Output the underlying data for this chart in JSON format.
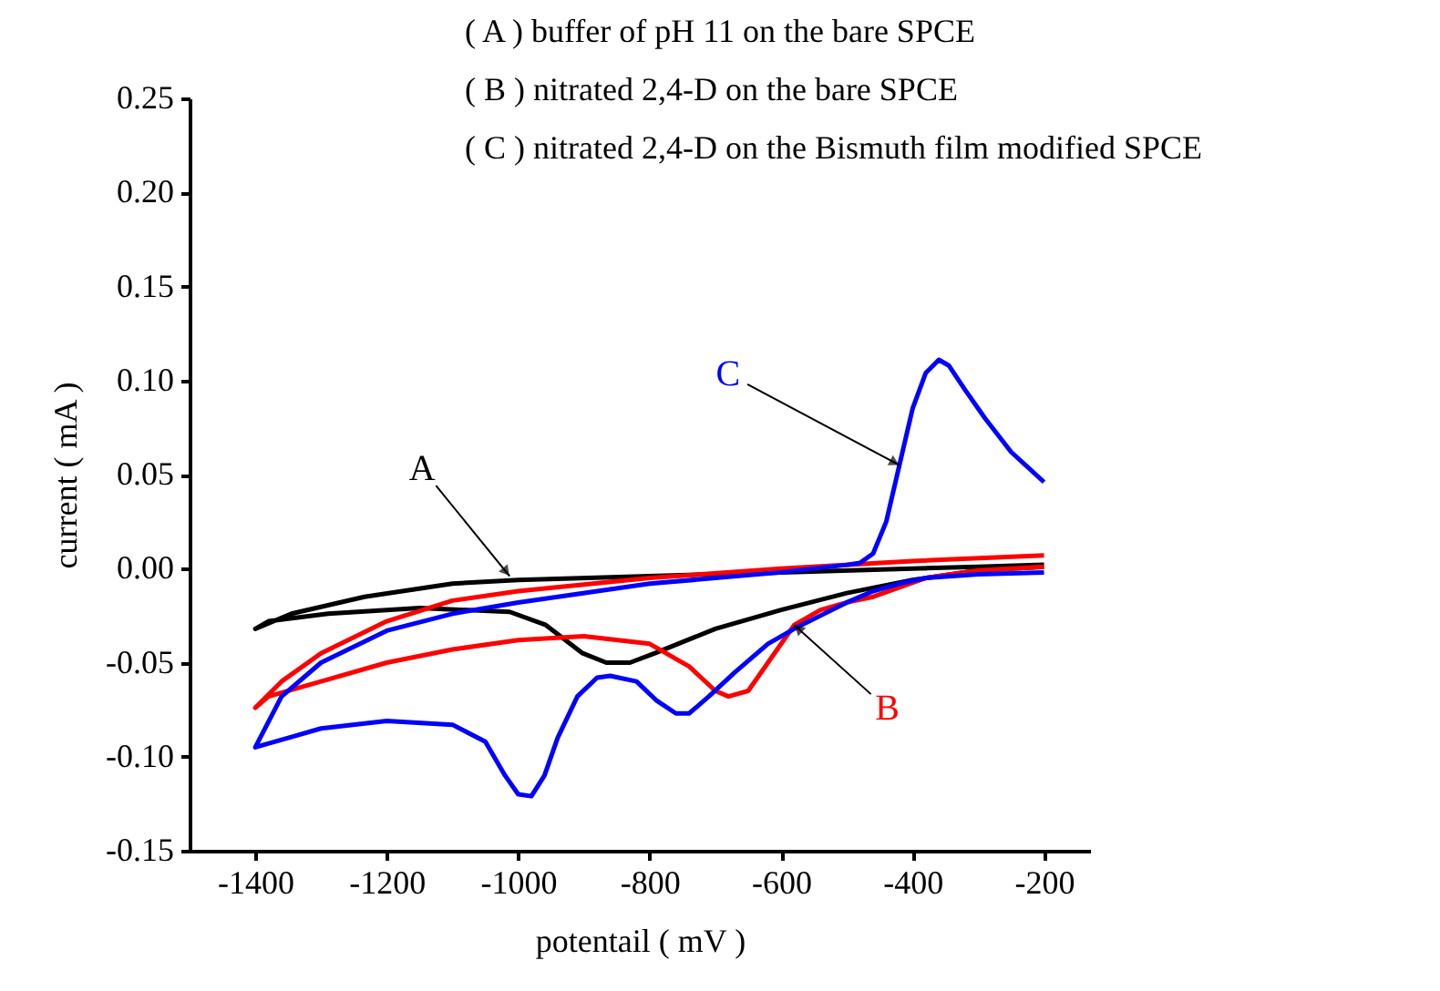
{
  "chart_data": {
    "type": "line",
    "xlabel": "potentail ( mV )",
    "ylabel": "current ( mA )",
    "xlim": [
      -1500,
      -130
    ],
    "ylim": [
      -0.15,
      0.25
    ],
    "xticks": [
      -1400,
      -1200,
      -1000,
      -800,
      -600,
      -400,
      -200
    ],
    "yticks": [
      {
        "value": -0.15,
        "label": "-0.15"
      },
      {
        "value": -0.1,
        "label": "-0.10"
      },
      {
        "value": -0.05,
        "label": "-0.05"
      },
      {
        "value": 0,
        "label": "0.00"
      },
      {
        "value": 0.05,
        "label": "0.05"
      },
      {
        "value": 0.1,
        "label": "0.10"
      },
      {
        "value": 0.15,
        "label": "0.15"
      },
      {
        "value": 0.2,
        "label": "0.20"
      },
      {
        "value": 0.25,
        "label": "0.25"
      }
    ],
    "grid": false,
    "marker": "none",
    "line_style": "solid",
    "annotations": [
      "( A ) buffer of pH  11 on the bare SPCE",
      "( B ) nitrated 2,4-D on the bare SPCE",
      "( C ) nitrated 2,4-D on the Bismuth film modified SPCE",
      {
        "text": "A",
        "x": -1013,
        "y": -0.004
      },
      {
        "text": "B",
        "x": -580,
        "y": -0.03
      },
      {
        "text": "C",
        "x": -420,
        "y": 0.055
      }
    ],
    "series": [
      {
        "color": "#000000",
        "x": [
          -200,
          -300,
          -400,
          -600,
          -800,
          -1000,
          -1100,
          -1234,
          -1345,
          -1400,
          -1380,
          -1289,
          -1150,
          -1013,
          -958,
          -902,
          -866,
          -830,
          -792,
          -700,
          -600,
          -500,
          -400,
          -300,
          -200
        ],
        "values": [
          0.002,
          0.001,
          0.0,
          -0.002,
          -0.004,
          -0.006,
          -0.008,
          -0.015,
          -0.024,
          -0.032,
          -0.028,
          -0.024,
          -0.021,
          -0.023,
          -0.03,
          -0.045,
          -0.05,
          -0.05,
          -0.045,
          -0.032,
          -0.022,
          -0.013,
          -0.006,
          -0.001,
          0.001
        ]
      },
      {
        "color": "#ff0000",
        "x": [
          -200,
          -400,
          -600,
          -800,
          -1000,
          -1100,
          -1200,
          -1300,
          -1360,
          -1400,
          -1380,
          -1300,
          -1200,
          -1100,
          -1000,
          -900,
          -800,
          -740,
          -700,
          -680,
          -650,
          -620,
          -580,
          -540,
          -500,
          -460,
          -420,
          -380,
          -300,
          -200
        ],
        "values": [
          0.007,
          0.004,
          0.0,
          -0.005,
          -0.012,
          -0.017,
          -0.028,
          -0.045,
          -0.06,
          -0.074,
          -0.068,
          -0.06,
          -0.05,
          -0.043,
          -0.038,
          -0.036,
          -0.04,
          -0.052,
          -0.065,
          -0.068,
          -0.065,
          -0.05,
          -0.03,
          -0.022,
          -0.018,
          -0.015,
          -0.01,
          -0.005,
          -0.001,
          0.001
        ]
      },
      {
        "color": "#0000ff",
        "x": [
          -200,
          -250,
          -290,
          -320,
          -345,
          -360,
          -380,
          -400,
          -420,
          -440,
          -460,
          -480,
          -500,
          -600,
          -800,
          -1000,
          -1100,
          -1200,
          -1300,
          -1360,
          -1400,
          -1350,
          -1300,
          -1200,
          -1100,
          -1050,
          -1020,
          -1000,
          -980,
          -960,
          -940,
          -910,
          -880,
          -860,
          -820,
          -790,
          -760,
          -740,
          -710,
          -670,
          -620,
          -580,
          -540,
          -500,
          -460,
          -420,
          -380,
          -300,
          -200
        ],
        "values": [
          0.046,
          0.062,
          0.08,
          0.095,
          0.108,
          0.111,
          0.104,
          0.085,
          0.055,
          0.025,
          0.008,
          0.003,
          0.002,
          -0.002,
          -0.008,
          -0.018,
          -0.024,
          -0.033,
          -0.05,
          -0.068,
          -0.095,
          -0.09,
          -0.085,
          -0.081,
          -0.083,
          -0.092,
          -0.11,
          -0.12,
          -0.121,
          -0.11,
          -0.09,
          -0.068,
          -0.058,
          -0.057,
          -0.06,
          -0.07,
          -0.077,
          -0.077,
          -0.068,
          -0.055,
          -0.04,
          -0.032,
          -0.025,
          -0.018,
          -0.012,
          -0.008,
          -0.005,
          -0.003,
          -0.002
        ]
      }
    ]
  }
}
